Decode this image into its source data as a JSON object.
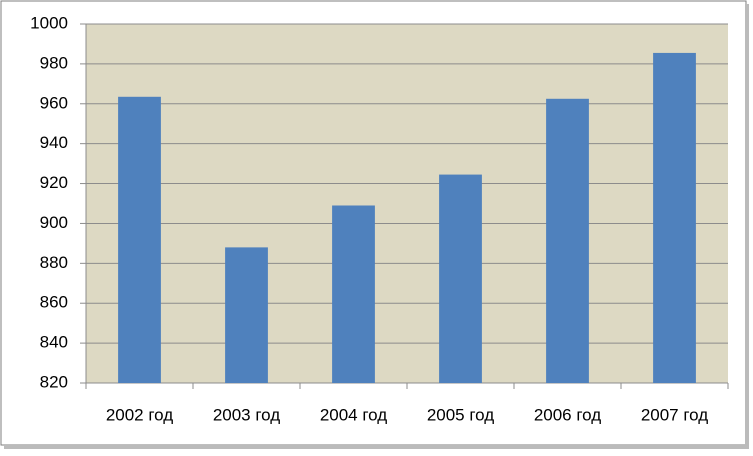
{
  "chart_data": {
    "type": "bar",
    "categories": [
      "2002 год",
      "2003 год",
      "2004 год",
      "2005 год",
      "2006 год",
      "2007 год"
    ],
    "values": [
      963.5,
      888,
      909,
      924.5,
      962.5,
      985.5
    ],
    "color": "#4f81bd",
    "ylim": [
      820,
      1000
    ],
    "yticks": [
      820,
      840,
      860,
      880,
      900,
      920,
      940,
      960,
      980,
      1000
    ],
    "grid": true
  }
}
